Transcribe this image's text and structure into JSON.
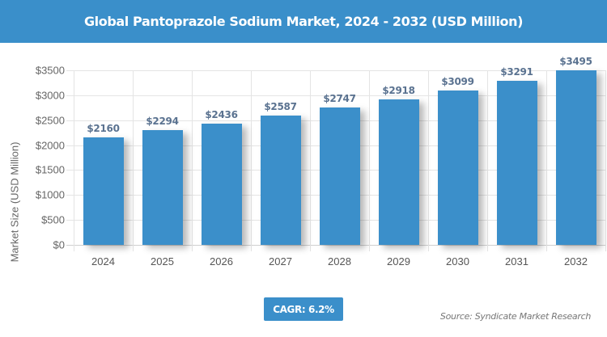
{
  "header": {
    "title": "Global Pantoprazole Sodium Market, 2024 - 2032 (USD Million)"
  },
  "footer": {
    "cagr": "CAGR: 6.2%",
    "source": "Source: Syndicate Market Research"
  },
  "colors": {
    "header_bg": "#3a8fca",
    "bar": "#3b8fca",
    "bar_label": "#5a7290",
    "grid": "#e4e4e4"
  },
  "chart_data": {
    "type": "bar",
    "title": "Global Pantoprazole Sodium Market, 2024 - 2032 (USD Million)",
    "xlabel": "",
    "ylabel": "Market Size (USD Million)",
    "categories": [
      "2024",
      "2025",
      "2026",
      "2027",
      "2028",
      "2029",
      "2030",
      "2031",
      "2032"
    ],
    "values": [
      2160,
      2294,
      2436,
      2587,
      2747,
      2918,
      3099,
      3291,
      3495
    ],
    "value_labels": [
      "$2160",
      "$2294",
      "$2436",
      "$2587",
      "$2747",
      "$2918",
      "$3099",
      "$3291",
      "$3495"
    ],
    "yticks": [
      "$0",
      "$500",
      "$1000",
      "$1500",
      "$2000",
      "$2500",
      "$3000",
      "$3500"
    ],
    "ytick_values": [
      0,
      500,
      1000,
      1500,
      2000,
      2500,
      3000,
      3500
    ],
    "ylim": [
      0,
      3500
    ],
    "grid": true,
    "legend": null,
    "annotations": [
      "CAGR: 6.2%",
      "Source: Syndicate Market Research"
    ]
  }
}
